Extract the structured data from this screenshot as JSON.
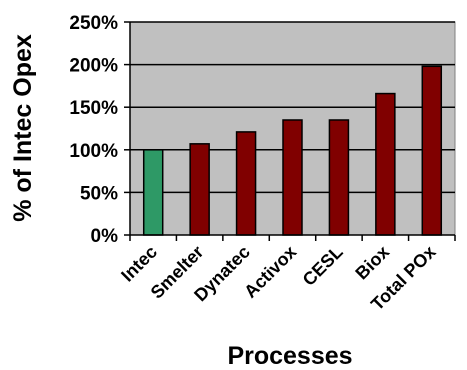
{
  "chart_data": {
    "type": "bar",
    "categories": [
      "Intec",
      "Smelter",
      "Dynatec",
      "Activox",
      "CESL",
      "Biox",
      "Total POx"
    ],
    "values": [
      100,
      107,
      121,
      135,
      135,
      166,
      198
    ],
    "ylabel": "% of Intec Opex",
    "xlabel": "Processes",
    "ylim": [
      0,
      250
    ],
    "yticks": [
      0,
      50,
      100,
      150,
      200,
      250
    ],
    "ytick_labels": [
      "0%",
      "50%",
      "100%",
      "150%",
      "200%",
      "250%"
    ],
    "grid": "horizontal",
    "plot_background": "#c0c0c0",
    "bar_colors": [
      "#2e9966",
      "#800000",
      "#800000",
      "#800000",
      "#800000",
      "#800000",
      "#800000"
    ]
  }
}
